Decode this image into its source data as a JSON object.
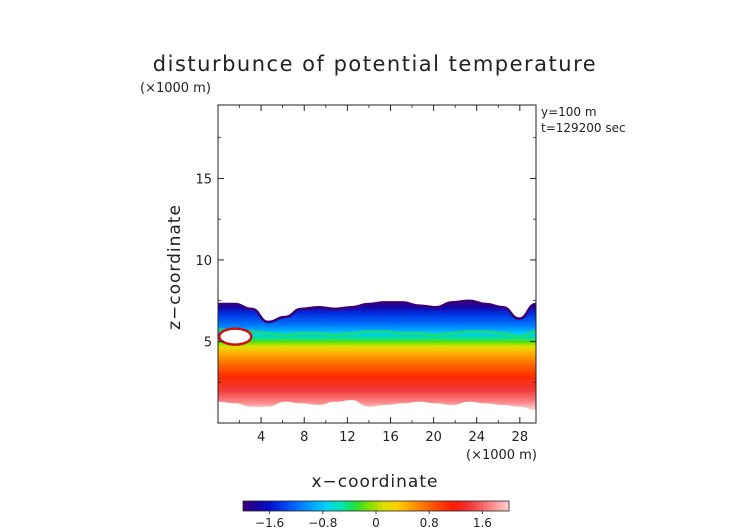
{
  "chart_data": {
    "type": "heatmap",
    "title": "disturbunce of potential temperature",
    "y_unit_label": "(×1000 m)",
    "x_unit_label": "(×1000 m)",
    "xlabel": "x−coordinate",
    "ylabel": "z−coordinate",
    "annotations": [
      "y=100 m",
      "t=129200 sec"
    ],
    "x_ticks": [
      {
        "value": 4,
        "label": "4"
      },
      {
        "value": 8,
        "label": "8"
      },
      {
        "value": 12,
        "label": "12"
      },
      {
        "value": 16,
        "label": "16"
      },
      {
        "value": 20,
        "label": "20"
      },
      {
        "value": 24,
        "label": "24"
      },
      {
        "value": 28,
        "label": "28"
      }
    ],
    "y_ticks": [
      {
        "value": 5,
        "label": "5"
      },
      {
        "value": 10,
        "label": "10"
      },
      {
        "value": 15,
        "label": "15"
      }
    ],
    "xlim": [
      0,
      29.5
    ],
    "ylim": [
      0,
      19.5
    ],
    "field": {
      "surface_top_z": [
        7.3,
        7.3,
        7.0,
        6.2,
        6.5,
        7.0,
        7.1,
        7.0,
        7.1,
        7.3,
        7.4,
        7.4,
        7.2,
        7.1,
        7.4,
        7.5,
        7.3,
        7.1,
        6.4,
        7.3
      ],
      "zero_line_z": [
        5.7,
        5.7,
        5.6,
        5.5,
        5.4,
        5.5,
        5.5,
        5.4,
        5.5,
        5.6,
        5.6,
        5.5,
        5.5,
        5.4,
        5.5,
        5.6,
        5.6,
        5.5,
        5.3,
        5.6
      ],
      "bottom_edge_z": [
        1.3,
        1.2,
        1.0,
        1.0,
        1.3,
        1.2,
        1.1,
        1.3,
        1.4,
        1.0,
        1.1,
        1.2,
        1.3,
        1.2,
        1.1,
        1.3,
        1.2,
        1.1,
        1.0,
        0.8
      ],
      "warm_bubble": {
        "x": 1.6,
        "z": 5.3,
        "label_value": "white core"
      }
    },
    "colorbar": {
      "vmin": -2.0,
      "vmax": 2.0,
      "ticks": [
        {
          "value": -1.6,
          "label": "−1.6"
        },
        {
          "value": -0.8,
          "label": "−0.8"
        },
        {
          "value": 0,
          "label": "0"
        },
        {
          "value": 0.8,
          "label": "0.8"
        },
        {
          "value": 1.6,
          "label": "1.6"
        }
      ],
      "colors": [
        "#3b0078",
        "#1a00a0",
        "#0015d0",
        "#0040f0",
        "#0075ff",
        "#00a8ff",
        "#00d4f5",
        "#00e6b0",
        "#20e040",
        "#80e000",
        "#d8e000",
        "#ffd000",
        "#ffa000",
        "#ff7000",
        "#ff4000",
        "#ff1a00",
        "#f03030",
        "#f86060",
        "#ff9898",
        "#ffd0d0"
      ]
    }
  }
}
